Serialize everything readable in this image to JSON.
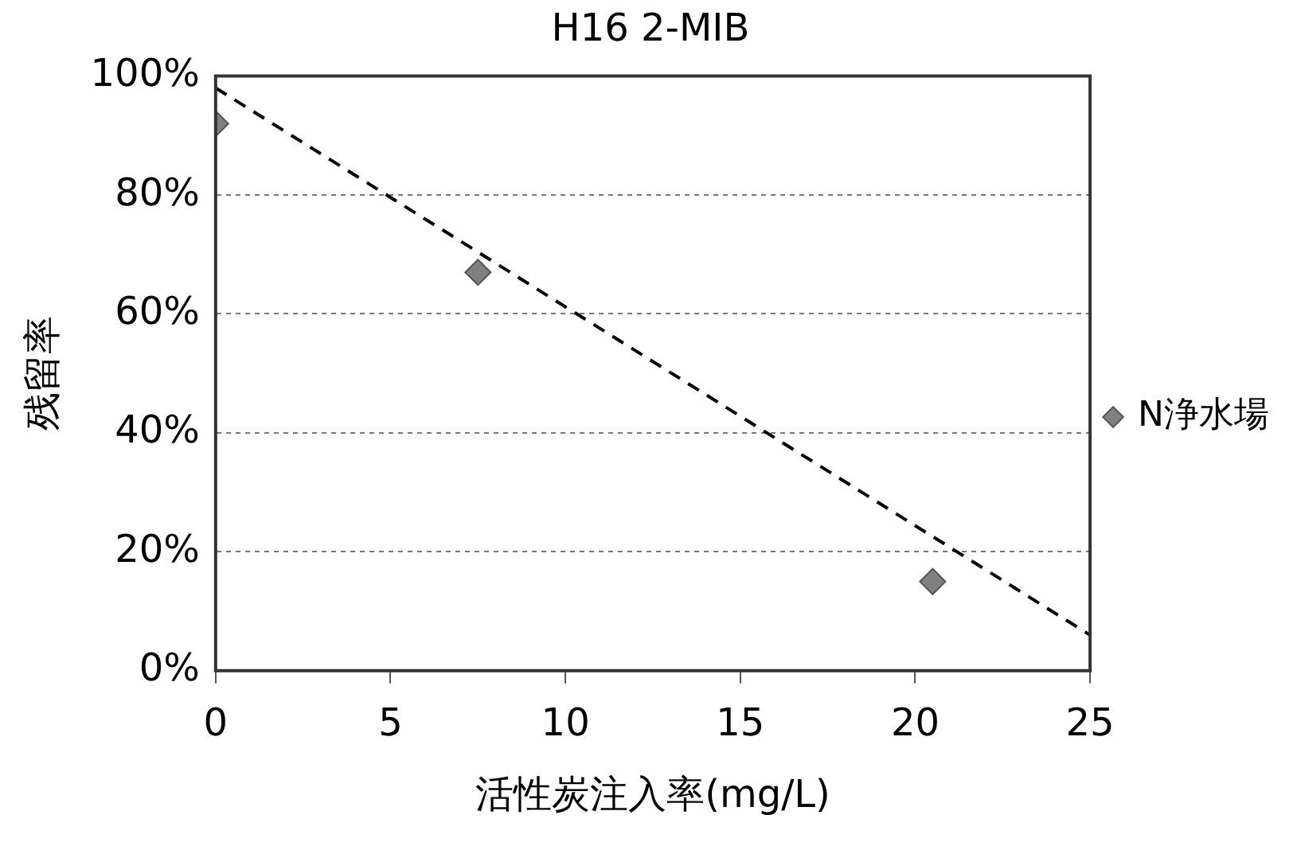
{
  "chart_data": {
    "type": "scatter",
    "title": "H16 2-MIB",
    "xlabel": "活性炭注入率(mg/L)",
    "ylabel": "残留率",
    "xlim": [
      0,
      25
    ],
    "xticks": [
      0,
      5,
      10,
      15,
      20,
      25
    ],
    "ylim": [
      0,
      100
    ],
    "yticks": [
      {
        "value": 0,
        "label": "0%"
      },
      {
        "value": 20,
        "label": "20%"
      },
      {
        "value": 40,
        "label": "40%"
      },
      {
        "value": 60,
        "label": "60%"
      },
      {
        "value": 80,
        "label": "80%"
      },
      {
        "value": 100,
        "label": "100%"
      }
    ],
    "grid": "y",
    "legend": "right",
    "series": [
      {
        "name": "N浄水場",
        "type": "scatter",
        "marker": "diamond",
        "color": "#808080",
        "x": [
          0,
          7.5,
          20.5
        ],
        "values": [
          92,
          67,
          15
        ]
      },
      {
        "type": "line",
        "marker": "none",
        "line_style": "dashed",
        "color": "#000000",
        "x": [
          0,
          25
        ],
        "values": [
          98,
          6
        ]
      }
    ]
  }
}
